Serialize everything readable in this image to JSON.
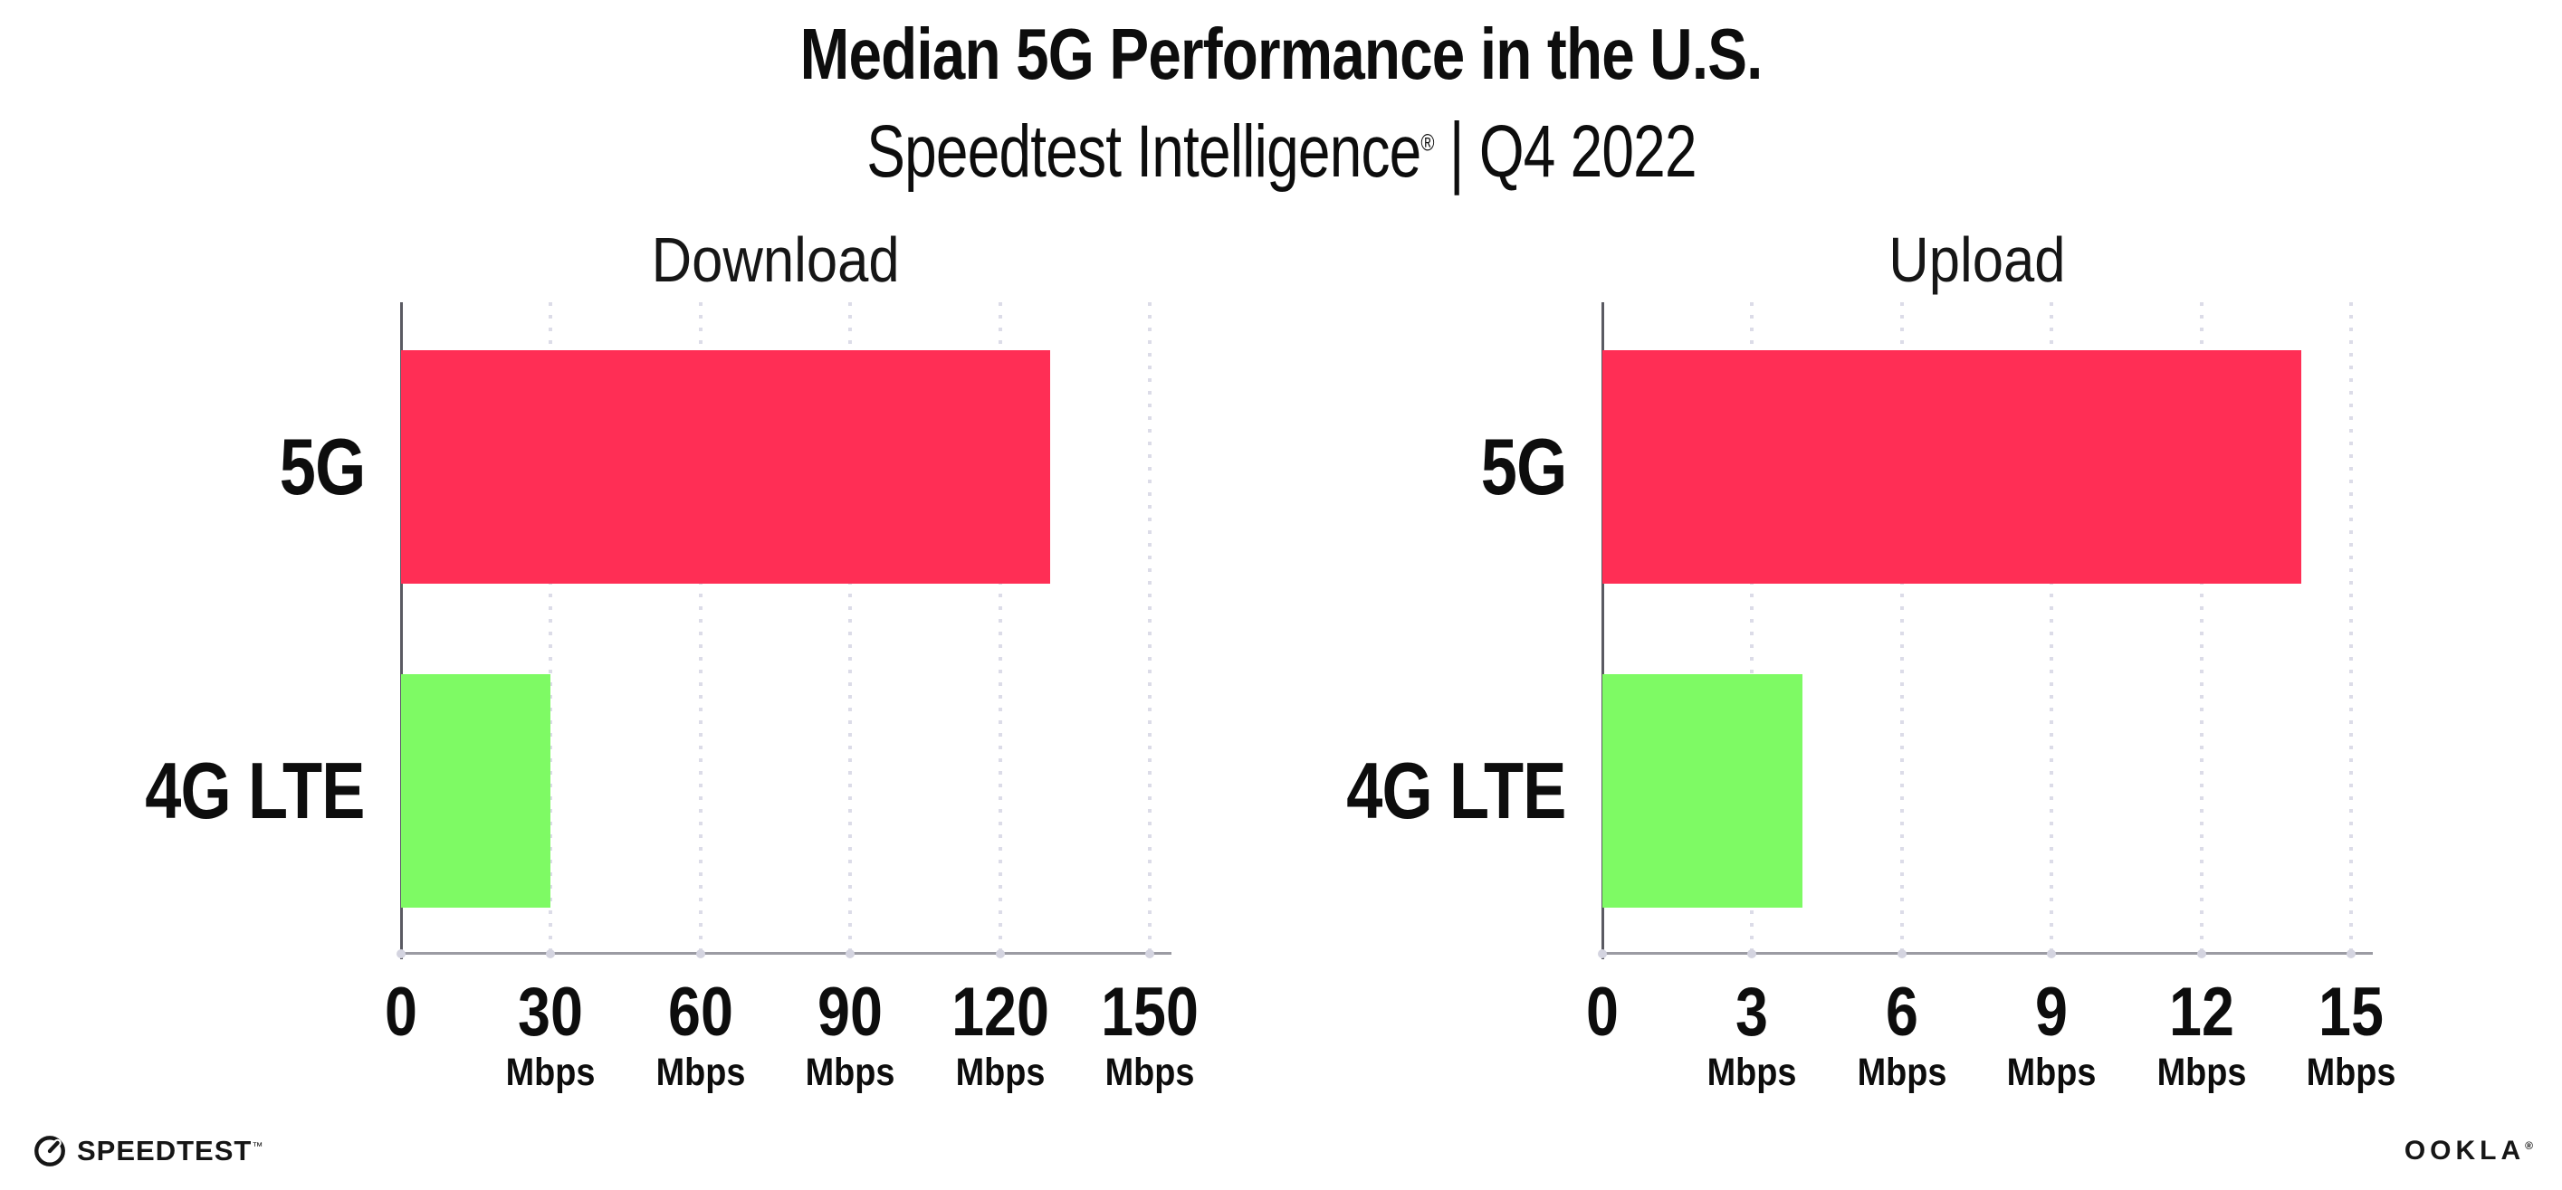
{
  "header": {
    "title": "Median 5G Performance in the U.S.",
    "subtitle": {
      "brand": "Speedtest Intelligence",
      "registered": "®",
      "separator": "|",
      "period": "Q4 2022"
    }
  },
  "chart_data": [
    {
      "type": "bar",
      "orientation": "horizontal",
      "title": "Download",
      "categories": [
        "5G",
        "4G LTE"
      ],
      "values": [
        130,
        30
      ],
      "unit": "Mbps",
      "xlabel": "",
      "ylabel": "",
      "xlim": [
        0,
        150
      ],
      "ticks": [
        0,
        30,
        60,
        90,
        120,
        150
      ],
      "bar_colors": [
        "#FF2E55",
        "#7EFA64"
      ],
      "grid": "dotted-vertical-gridlines",
      "legend": "none"
    },
    {
      "type": "bar",
      "orientation": "horizontal",
      "title": "Upload",
      "categories": [
        "5G",
        "4G LTE"
      ],
      "values": [
        14,
        4
      ],
      "unit": "Mbps",
      "xlabel": "",
      "ylabel": "",
      "xlim": [
        0,
        15
      ],
      "ticks": [
        0,
        3,
        6,
        9,
        12,
        15
      ],
      "bar_colors": [
        "#FF2E55",
        "#7EFA64"
      ],
      "grid": "dotted-vertical-gridlines",
      "legend": "none"
    }
  ],
  "footer": {
    "speedtest_label": "SPEEDTEST",
    "speedtest_mark": "™",
    "ookla_label": "OOKLA",
    "ookla_mark": "®"
  },
  "colors": {
    "bar_5g": "#FF2E55",
    "bar_4g_lte": "#7EFA64",
    "gridline": "#DCDCE8",
    "tick_dot": "#D4D4E0",
    "y_axis": "#5A5A62",
    "x_axis": "#9B9BA3",
    "text": "#0D0D0D",
    "background": "#FFFFFF"
  }
}
